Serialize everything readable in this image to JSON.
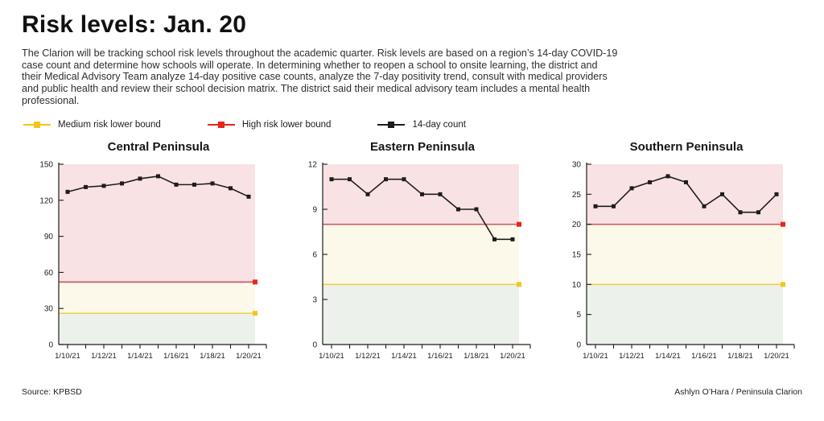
{
  "page": {
    "title": "Risk levels: Jan. 20",
    "description": "The Clarion will be tracking school risk levels throughout the academic quarter. Risk levels are based on a region’s 14-day COVID-19 case count and determine how schools will operate. In determining whether to reopen a school to onsite learning, the district and their Medical Advisory Team analyze 14-day positive case counts, analyze the 7-day positivity trend, consult with medical providers and public health and review their school decision matrix. The district said their medical advisory team includes a mental health professional.",
    "source": "Source: KPBSD",
    "credit": "Ashlyn O’Hara / Peninsula Clarion"
  },
  "legend": {
    "items": [
      {
        "label": "Medium risk lower bound",
        "color": "#f5c51d",
        "marker": "square"
      },
      {
        "label": "High risk lower bound",
        "color": "#e6261c",
        "marker": "square"
      },
      {
        "label": "14-day count",
        "color": "#1d1d1b",
        "marker": "square"
      }
    ]
  },
  "colors": {
    "high_zone": "#f9e2e4",
    "medium_zone": "#fdf9ea",
    "low_zone": "#ecf1ec",
    "red_line": "#c75f66",
    "red_marker": "#e6261c",
    "yellow_line": "#ecd24d",
    "yellow_marker": "#f5c51d",
    "series": "#1d1d1b",
    "axis": "#1d1d1b",
    "footer_bar": "#2f6db6"
  },
  "chart_data": [
    {
      "type": "line",
      "title": "Central Peninsula",
      "x": [
        "1/10/21",
        "1/11/21",
        "1/12/21",
        "1/13/21",
        "1/14/21",
        "1/15/21",
        "1/16/21",
        "1/17/21",
        "1/18/21",
        "1/19/21",
        "1/20/21"
      ],
      "x_tick_labels": [
        "1/10/21",
        "1/12/21",
        "1/14/21",
        "1/16/21",
        "1/18/21",
        "1/20/21"
      ],
      "series": [
        {
          "kind": "data",
          "name": "14-day count",
          "values": [
            127,
            131,
            132,
            134,
            138,
            140,
            133,
            133,
            134,
            130,
            123
          ]
        },
        {
          "kind": "threshold",
          "name": "High risk lower bound",
          "value": 52
        },
        {
          "kind": "threshold",
          "name": "Medium risk lower bound",
          "value": 26
        }
      ],
      "ylim": [
        0,
        150
      ],
      "yticks": [
        0,
        30,
        60,
        90,
        120,
        150
      ],
      "grid": false,
      "legend_position": "top-outside"
    },
    {
      "type": "line",
      "title": "Eastern Peninsula",
      "x": [
        "1/10/21",
        "1/11/21",
        "1/12/21",
        "1/13/21",
        "1/14/21",
        "1/15/21",
        "1/16/21",
        "1/17/21",
        "1/18/21",
        "1/19/21",
        "1/20/21"
      ],
      "x_tick_labels": [
        "1/10/21",
        "1/12/21",
        "1/14/21",
        "1/16/21",
        "1/18/21",
        "1/20/21"
      ],
      "series": [
        {
          "kind": "data",
          "name": "14-day count",
          "values": [
            11,
            11,
            10,
            11,
            11,
            10,
            10,
            9,
            9,
            7,
            7
          ]
        },
        {
          "kind": "threshold",
          "name": "High risk lower bound",
          "value": 8
        },
        {
          "kind": "threshold",
          "name": "Medium risk lower bound",
          "value": 4
        }
      ],
      "ylim": [
        0,
        12
      ],
      "yticks": [
        0,
        3,
        6,
        9,
        12
      ],
      "grid": false,
      "legend_position": "top-outside"
    },
    {
      "type": "line",
      "title": "Southern Peninsula",
      "x": [
        "1/10/21",
        "1/11/21",
        "1/12/21",
        "1/13/21",
        "1/14/21",
        "1/15/21",
        "1/16/21",
        "1/17/21",
        "1/18/21",
        "1/19/21",
        "1/20/21"
      ],
      "x_tick_labels": [
        "1/10/21",
        "1/12/21",
        "1/14/21",
        "1/16/21",
        "1/18/21",
        "1/20/21"
      ],
      "series": [
        {
          "kind": "data",
          "name": "14-day count",
          "values": [
            23,
            23,
            26,
            27,
            28,
            27,
            23,
            25,
            22,
            22,
            25
          ]
        },
        {
          "kind": "threshold",
          "name": "High risk lower bound",
          "value": 20
        },
        {
          "kind": "threshold",
          "name": "Medium risk lower bound",
          "value": 10
        }
      ],
      "ylim": [
        0,
        30
      ],
      "yticks": [
        0,
        5,
        10,
        15,
        20,
        25,
        30
      ],
      "grid": false,
      "legend_position": "top-outside"
    }
  ]
}
